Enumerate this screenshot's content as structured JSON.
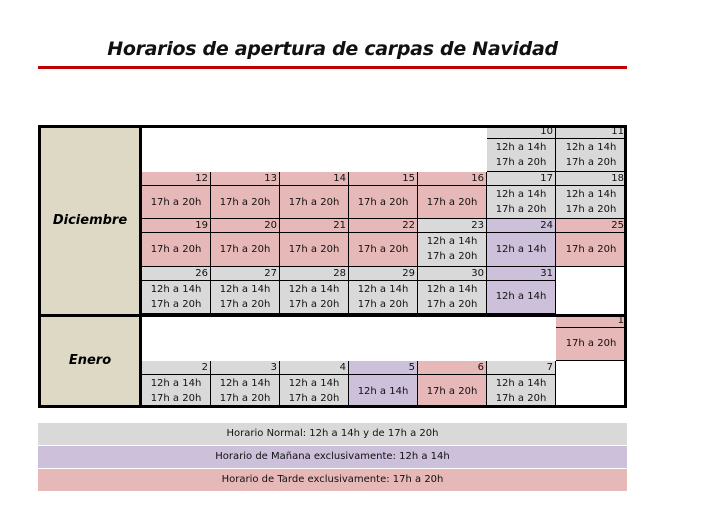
{
  "title": "Horarios de apertura de carpas de Navidad",
  "colors": {
    "normal": "#d9d9d9",
    "manana": "#ccc0da",
    "tarde": "#e6b8b7",
    "month": "#ddd9c4",
    "rule": "#c00000"
  },
  "months": [
    {
      "name": "Diciembre",
      "weeks": [
        [
          null,
          null,
          null,
          null,
          null,
          {
            "day": "10",
            "type": "normal",
            "lines": [
              "12h a 14h",
              "17h a 20h"
            ]
          },
          {
            "day": "11",
            "type": "normal",
            "lines": [
              "12h a 14h",
              "17h a 20h"
            ]
          }
        ],
        [
          {
            "day": "12",
            "type": "tarde",
            "lines": [
              "17h a 20h"
            ]
          },
          {
            "day": "13",
            "type": "tarde",
            "lines": [
              "17h a 20h"
            ]
          },
          {
            "day": "14",
            "type": "tarde",
            "lines": [
              "17h a 20h"
            ]
          },
          {
            "day": "15",
            "type": "tarde",
            "lines": [
              "17h a 20h"
            ]
          },
          {
            "day": "16",
            "type": "tarde",
            "lines": [
              "17h a 20h"
            ]
          },
          {
            "day": "17",
            "type": "normal",
            "lines": [
              "12h a 14h",
              "17h a 20h"
            ]
          },
          {
            "day": "18",
            "type": "normal",
            "lines": [
              "12h a 14h",
              "17h a 20h"
            ]
          }
        ],
        [
          {
            "day": "19",
            "type": "tarde",
            "lines": [
              "17h a 20h"
            ]
          },
          {
            "day": "20",
            "type": "tarde",
            "lines": [
              "17h a 20h"
            ]
          },
          {
            "day": "21",
            "type": "tarde",
            "lines": [
              "17h a 20h"
            ]
          },
          {
            "day": "22",
            "type": "tarde",
            "lines": [
              "17h a 20h"
            ]
          },
          {
            "day": "23",
            "type": "normal",
            "lines": [
              "12h a 14h",
              "17h a 20h"
            ]
          },
          {
            "day": "24",
            "type": "manana",
            "lines": [
              "12h a 14h"
            ]
          },
          {
            "day": "25",
            "type": "tarde",
            "lines": [
              "17h a 20h"
            ]
          }
        ],
        [
          {
            "day": "26",
            "type": "normal",
            "lines": [
              "12h a 14h",
              "17h a 20h"
            ]
          },
          {
            "day": "27",
            "type": "normal",
            "lines": [
              "12h a 14h",
              "17h a 20h"
            ]
          },
          {
            "day": "28",
            "type": "normal",
            "lines": [
              "12h a 14h",
              "17h a 20h"
            ]
          },
          {
            "day": "29",
            "type": "normal",
            "lines": [
              "12h a 14h",
              "17h a 20h"
            ]
          },
          {
            "day": "30",
            "type": "normal",
            "lines": [
              "12h a 14h",
              "17h a 20h"
            ]
          },
          {
            "day": "31",
            "type": "manana",
            "lines": [
              "12h a 14h"
            ]
          },
          null
        ]
      ]
    },
    {
      "name": "Enero",
      "weeks": [
        [
          null,
          null,
          null,
          null,
          null,
          null,
          {
            "day": "1",
            "type": "tarde",
            "lines": [
              "17h a 20h"
            ]
          }
        ],
        [
          {
            "day": "2",
            "type": "normal",
            "lines": [
              "12h a 14h",
              "17h a 20h"
            ]
          },
          {
            "day": "3",
            "type": "normal",
            "lines": [
              "12h a 14h",
              "17h a 20h"
            ]
          },
          {
            "day": "4",
            "type": "normal",
            "lines": [
              "12h a 14h",
              "17h a 20h"
            ]
          },
          {
            "day": "5",
            "type": "manana",
            "lines": [
              "12h a 14h"
            ]
          },
          {
            "day": "6",
            "type": "tarde",
            "lines": [
              "17h a 20h"
            ]
          },
          {
            "day": "7",
            "type": "normal",
            "lines": [
              "12h a 14h",
              "17h a 20h"
            ]
          },
          null
        ]
      ]
    }
  ],
  "legend": [
    {
      "type": "normal",
      "text": "Horario Normal: 12h a 14h y de 17h a 20h"
    },
    {
      "type": "manana",
      "text": "Horario de Mañana exclusivamente: 12h a 14h"
    },
    {
      "type": "tarde",
      "text": "Horario de Tarde exclusivamente: 17h a 20h"
    }
  ]
}
